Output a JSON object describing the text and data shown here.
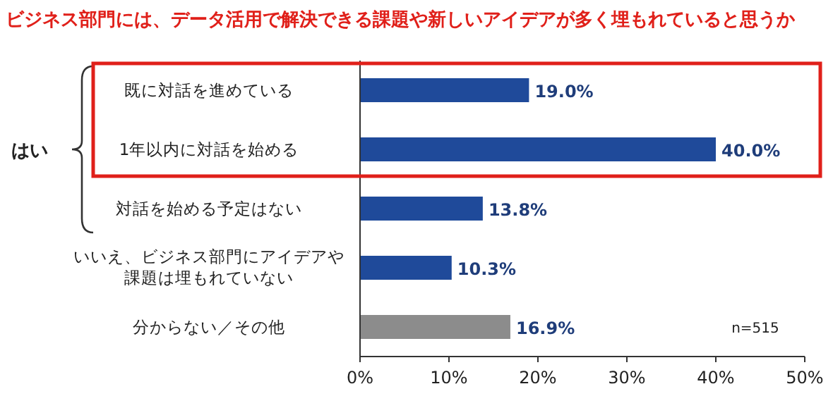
{
  "chart_data": {
    "type": "bar",
    "orientation": "horizontal",
    "title": "ビジネス部門には、データ活用で解決できる課題や新しいアイデアが多く埋もれていると思うか",
    "categories": [
      "既に対話を進めている",
      "1年以内に対話を始める",
      "対話を始める予定はない",
      "いいえ、ビジネス部門にアイデアや課題は埋もれていない",
      "分からない／その他"
    ],
    "values": [
      19.0,
      40.0,
      13.8,
      10.3,
      16.9
    ],
    "colors": [
      "#1f4a9a",
      "#1f4a9a",
      "#1f4a9a",
      "#1f4a9a",
      "#8c8c8c"
    ],
    "value_labels": [
      "19.0%",
      "40.0%",
      "13.8%",
      "10.3%",
      "16.9%"
    ],
    "xlim": [
      0,
      50
    ],
    "xticks": [
      {
        "value": 0,
        "label": "0%"
      },
      {
        "value": 10,
        "label": "10%"
      },
      {
        "value": 20,
        "label": "20%"
      },
      {
        "value": 30,
        "label": "30%"
      },
      {
        "value": 40,
        "label": "40%"
      },
      {
        "value": 50,
        "label": "50%"
      }
    ],
    "annotations": [
      "n=515",
      "はい"
    ],
    "grid": false
  }
}
